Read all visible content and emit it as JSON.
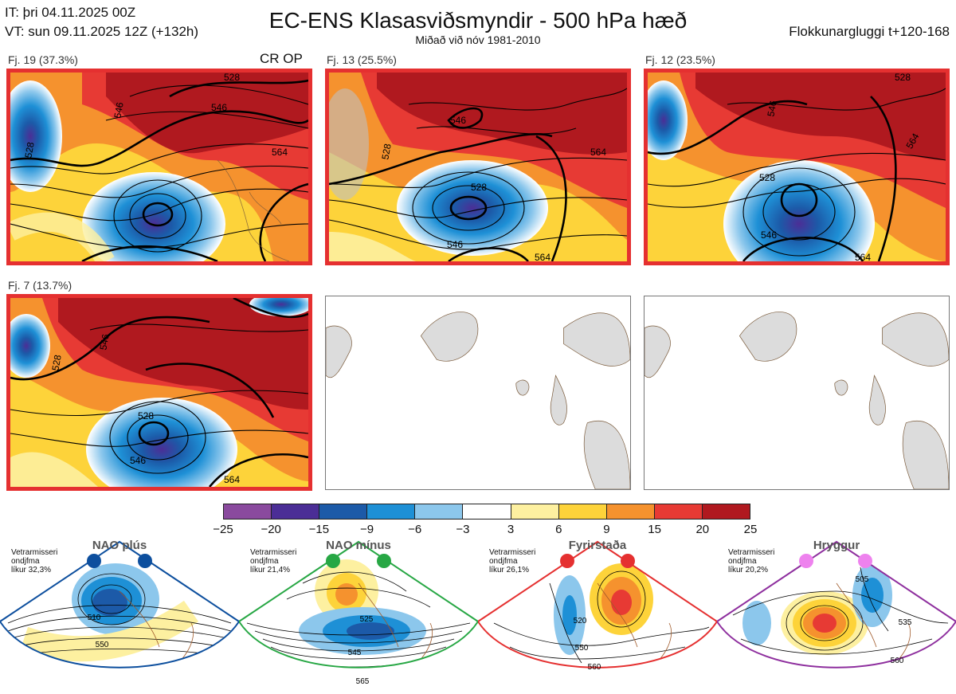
{
  "header": {
    "it_line": "IT: þri 04.11.2025 00Z",
    "vt_line": "VT: sun 09.11.2025 12Z  (+132h)",
    "title": "EC-ENS Klasasviðsmyndir - 500 hPa hæð",
    "subtitle": "Miðað við nóv 1981-2010",
    "window_label": "Flokkunargluggi t+120-168"
  },
  "clusters": [
    {
      "label": "Fj. 19 (37.3%)",
      "tag": "CR OP",
      "contours": [
        "528",
        "546",
        "546",
        "564",
        "528"
      ]
    },
    {
      "label": "Fj. 13 (25.5%)",
      "tag": "",
      "contours": [
        "528",
        "546",
        "546",
        "564",
        "528",
        "564"
      ]
    },
    {
      "label": "Fj. 12 (23.5%)",
      "tag": "",
      "contours": [
        "528",
        "546",
        "546",
        "564",
        "528",
        "564"
      ]
    },
    {
      "label": "Fj. 7 (13.7%)",
      "tag": "",
      "contours": [
        "528",
        "546",
        "528",
        "546",
        "564"
      ]
    }
  ],
  "colorbar": {
    "ticks": [
      "−25",
      "−20",
      "−15",
      "−9",
      "−6",
      "−3",
      "3",
      "6",
      "9",
      "15",
      "20",
      "25"
    ],
    "colors": [
      "#8a4a9e",
      "#4b2e96",
      "#1c5aa8",
      "#1e90d6",
      "#8cc7ec",
      "#ffffff",
      "#fdf0a0",
      "#fdd33a",
      "#f5922e",
      "#e73a34",
      "#b0191f"
    ]
  },
  "regimes": [
    {
      "name": "NAO plús",
      "note": [
        "Vetrarmisseri",
        "ondjfma",
        "líkur 32,3%"
      ],
      "color": "#0d4f9e",
      "labels": [
        "510",
        "550"
      ]
    },
    {
      "name": "NAO mínus",
      "note": [
        "Vetrarmisseri",
        "ondjfma",
        "líkur 21,4%"
      ],
      "color": "#27a744",
      "labels": [
        "525",
        "545",
        "565"
      ]
    },
    {
      "name": "Fyrirstaða",
      "note": [
        "Vetrarmisseri",
        "ondjfma",
        "líkur 26,1%"
      ],
      "color": "#e53030",
      "labels": [
        "520",
        "550",
        "560"
      ]
    },
    {
      "name": "Hryggur",
      "note": [
        "Vetrarmisseri",
        "ondjfma",
        "líkur 20,2%"
      ],
      "color": "#8e2f9e",
      "labels": [
        "505",
        "535",
        "560"
      ]
    }
  ]
}
